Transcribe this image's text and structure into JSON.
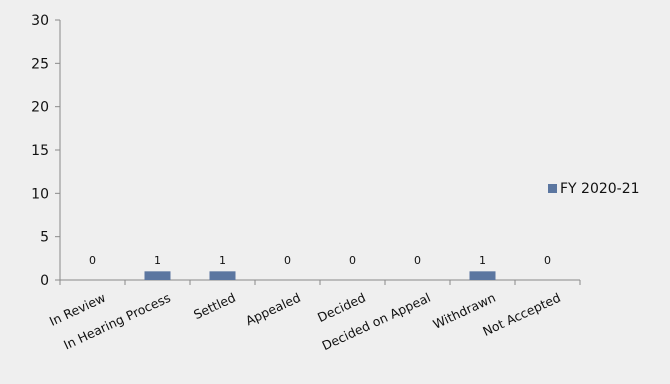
{
  "chart_data": {
    "type": "bar",
    "title": "",
    "xlabel": "",
    "ylabel": "",
    "categories": [
      "In Review",
      "In Hearing Process",
      "Settled",
      "Appealed",
      "Decided",
      "Decided on Appeal",
      "Withdrawn",
      "Not Accepted"
    ],
    "series": [
      {
        "name": "FY 2020-21",
        "values": [
          0,
          1,
          1,
          0,
          0,
          0,
          1,
          0
        ],
        "color": "#5b76a0"
      }
    ],
    "data_labels": [
      "0",
      "1",
      "1",
      "0",
      "0",
      "0",
      "1",
      "0"
    ],
    "ylim": [
      0,
      30
    ],
    "yticks": [
      "0",
      "5",
      "10",
      "15",
      "20",
      "25",
      "30"
    ],
    "grid": false,
    "legend_position": "right",
    "colors": {
      "background": "#efefef",
      "axis": "#8a8a8a",
      "text": "#111111"
    }
  }
}
